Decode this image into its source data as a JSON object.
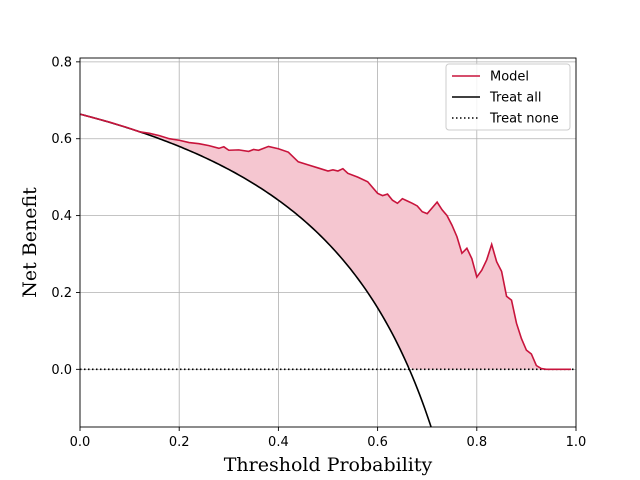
{
  "chart_data": {
    "type": "line",
    "title": "",
    "xlabel": "Threshold Probability",
    "ylabel": "Net Benefit",
    "xlim": [
      0.0,
      1.0
    ],
    "ylim": [
      -0.15,
      0.81
    ],
    "grid": true,
    "legend_position": "top-right",
    "prevalence": 0.664,
    "xticks": [
      {
        "value": 0.0,
        "label": "0.0"
      },
      {
        "value": 0.2,
        "label": "0.2"
      },
      {
        "value": 0.4,
        "label": "0.4"
      },
      {
        "value": 0.6,
        "label": "0.6"
      },
      {
        "value": 0.8,
        "label": "0.8"
      },
      {
        "value": 1.0,
        "label": "1.0"
      }
    ],
    "yticks": [
      {
        "value": 0.0,
        "label": "0.0"
      },
      {
        "value": 0.2,
        "label": "0.2"
      },
      {
        "value": 0.4,
        "label": "0.4"
      },
      {
        "value": 0.6,
        "label": "0.6"
      },
      {
        "value": 0.8,
        "label": "0.8"
      }
    ],
    "series": [
      {
        "name": "Model",
        "color": "#c8143c",
        "fill_color": "#f5c6d0",
        "style": "solid",
        "x": [
          0.0,
          0.02,
          0.04,
          0.06,
          0.08,
          0.1,
          0.12,
          0.14,
          0.16,
          0.18,
          0.2,
          0.22,
          0.24,
          0.26,
          0.28,
          0.29,
          0.3,
          0.32,
          0.34,
          0.35,
          0.36,
          0.38,
          0.4,
          0.42,
          0.44,
          0.46,
          0.48,
          0.5,
          0.51,
          0.52,
          0.53,
          0.54,
          0.56,
          0.58,
          0.6,
          0.61,
          0.62,
          0.63,
          0.64,
          0.65,
          0.66,
          0.67,
          0.68,
          0.69,
          0.7,
          0.71,
          0.72,
          0.73,
          0.74,
          0.75,
          0.76,
          0.77,
          0.78,
          0.79,
          0.8,
          0.81,
          0.82,
          0.83,
          0.84,
          0.85,
          0.86,
          0.87,
          0.88,
          0.89,
          0.9,
          0.91,
          0.92,
          0.93,
          0.94,
          0.96,
          0.98,
          0.99
        ],
        "values": [
          0.664,
          0.657,
          0.65,
          0.643,
          0.635,
          0.627,
          0.618,
          0.614,
          0.608,
          0.6,
          0.596,
          0.59,
          0.587,
          0.582,
          0.575,
          0.579,
          0.57,
          0.571,
          0.567,
          0.572,
          0.57,
          0.58,
          0.574,
          0.565,
          0.54,
          0.532,
          0.524,
          0.516,
          0.519,
          0.516,
          0.522,
          0.51,
          0.5,
          0.488,
          0.458,
          0.452,
          0.456,
          0.44,
          0.432,
          0.444,
          0.438,
          0.432,
          0.425,
          0.41,
          0.405,
          0.42,
          0.435,
          0.415,
          0.4,
          0.375,
          0.345,
          0.302,
          0.315,
          0.288,
          0.24,
          0.258,
          0.285,
          0.325,
          0.28,
          0.255,
          0.19,
          0.18,
          0.12,
          0.08,
          0.05,
          0.04,
          0.01,
          0.002,
          0.0,
          0.0,
          0.0,
          0.0
        ]
      },
      {
        "name": "Treat all",
        "color": "#000000",
        "style": "solid"
      },
      {
        "name": "Treat none",
        "color": "#000000",
        "style": "dotted",
        "x": [
          0.0,
          1.0
        ],
        "values": [
          0.0,
          0.0
        ]
      }
    ],
    "legend": [
      "Model",
      "Treat all",
      "Treat none"
    ]
  }
}
